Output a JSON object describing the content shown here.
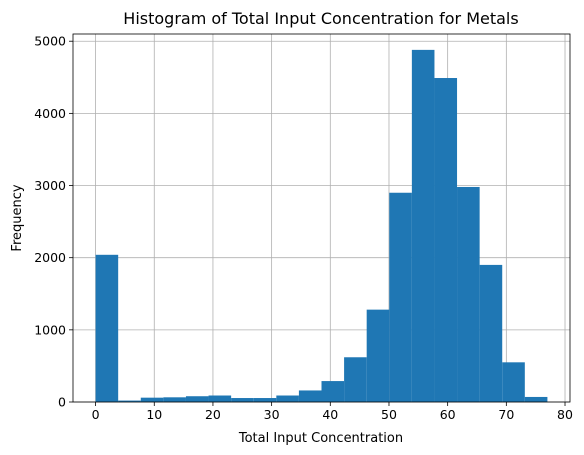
{
  "chart_data": {
    "type": "bar",
    "title": "Histogram of Total Input Concentration for Metals",
    "xlabel": "Total Input Concentration",
    "ylabel": "Frequency",
    "xlim": [
      -3.85,
      80.85
    ],
    "ylim": [
      0,
      5100
    ],
    "x_ticks": [
      0,
      10,
      20,
      30,
      40,
      50,
      60,
      70,
      80
    ],
    "y_ticks": [
      0,
      1000,
      2000,
      3000,
      4000,
      5000
    ],
    "grid": true,
    "bar_color": "#1f77b4",
    "bins": [
      {
        "x0": 0.0,
        "x1": 3.85,
        "value": 2040
      },
      {
        "x0": 3.85,
        "x1": 7.7,
        "value": 20
      },
      {
        "x0": 7.7,
        "x1": 11.55,
        "value": 60
      },
      {
        "x0": 11.55,
        "x1": 15.4,
        "value": 65
      },
      {
        "x0": 15.4,
        "x1": 19.25,
        "value": 80
      },
      {
        "x0": 19.25,
        "x1": 23.1,
        "value": 90
      },
      {
        "x0": 23.1,
        "x1": 26.95,
        "value": 55
      },
      {
        "x0": 26.95,
        "x1": 30.8,
        "value": 55
      },
      {
        "x0": 30.8,
        "x1": 34.65,
        "value": 90
      },
      {
        "x0": 34.65,
        "x1": 38.5,
        "value": 160
      },
      {
        "x0": 38.5,
        "x1": 42.35,
        "value": 290
      },
      {
        "x0": 42.35,
        "x1": 46.2,
        "value": 620
      },
      {
        "x0": 46.2,
        "x1": 50.05,
        "value": 1280
      },
      {
        "x0": 50.05,
        "x1": 53.9,
        "value": 2900
      },
      {
        "x0": 53.9,
        "x1": 57.75,
        "value": 4880
      },
      {
        "x0": 57.75,
        "x1": 61.6,
        "value": 4490
      },
      {
        "x0": 61.6,
        "x1": 65.45,
        "value": 2980
      },
      {
        "x0": 65.45,
        "x1": 69.3,
        "value": 1900
      },
      {
        "x0": 69.3,
        "x1": 73.15,
        "value": 550
      },
      {
        "x0": 73.15,
        "x1": 77.0,
        "value": 70
      }
    ]
  }
}
